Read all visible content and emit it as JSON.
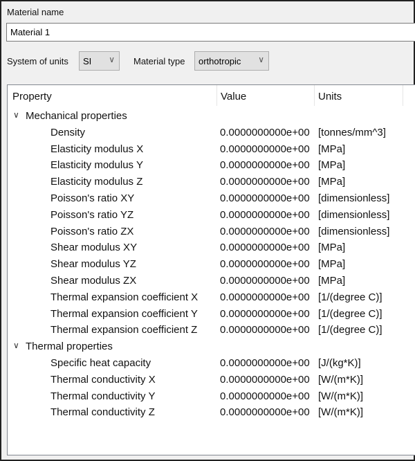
{
  "material_name_label": "Material name",
  "material_name_value": "Material 1",
  "units_label": "System of units",
  "units_value": "SI",
  "type_label": "Material type",
  "type_value": "orthotropic",
  "columns": {
    "property": "Property",
    "value": "Value",
    "units": "Units"
  },
  "groups": [
    {
      "name": "Mechanical properties",
      "expanded": true,
      "rows": [
        {
          "p": "Density",
          "v": "0.0000000000e+00",
          "u": "[tonnes/mm^3]"
        },
        {
          "p": "Elasticity modulus X",
          "v": "0.0000000000e+00",
          "u": "[MPa]"
        },
        {
          "p": "Elasticity modulus Y",
          "v": "0.0000000000e+00",
          "u": "[MPa]"
        },
        {
          "p": "Elasticity modulus Z",
          "v": "0.0000000000e+00",
          "u": "[MPa]"
        },
        {
          "p": "Poisson's ratio XY",
          "v": "0.0000000000e+00",
          "u": "[dimensionless]"
        },
        {
          "p": "Poisson's ratio YZ",
          "v": "0.0000000000e+00",
          "u": "[dimensionless]"
        },
        {
          "p": "Poisson's ratio ZX",
          "v": "0.0000000000e+00",
          "u": "[dimensionless]"
        },
        {
          "p": "Shear modulus XY",
          "v": "0.0000000000e+00",
          "u": "[MPa]"
        },
        {
          "p": "Shear modulus YZ",
          "v": "0.0000000000e+00",
          "u": "[MPa]"
        },
        {
          "p": "Shear modulus ZX",
          "v": "0.0000000000e+00",
          "u": "[MPa]"
        },
        {
          "p": "Thermal expansion coefficient X",
          "v": "0.0000000000e+00",
          "u": "[1/(degree C)]"
        },
        {
          "p": "Thermal expansion coefficient Y",
          "v": "0.0000000000e+00",
          "u": "[1/(degree C)]"
        },
        {
          "p": "Thermal expansion coefficient Z",
          "v": "0.0000000000e+00",
          "u": "[1/(degree C)]"
        }
      ]
    },
    {
      "name": "Thermal properties",
      "expanded": true,
      "rows": [
        {
          "p": "Specific heat capacity",
          "v": "0.0000000000e+00",
          "u": "[J/(kg*K)]"
        },
        {
          "p": "Thermal conductivity X",
          "v": "0.0000000000e+00",
          "u": "[W/(m*K)]"
        },
        {
          "p": "Thermal conductivity Y",
          "v": "0.0000000000e+00",
          "u": "[W/(m*K)]"
        },
        {
          "p": "Thermal conductivity Z",
          "v": "0.0000000000e+00",
          "u": "[W/(m*K)]"
        }
      ]
    }
  ]
}
